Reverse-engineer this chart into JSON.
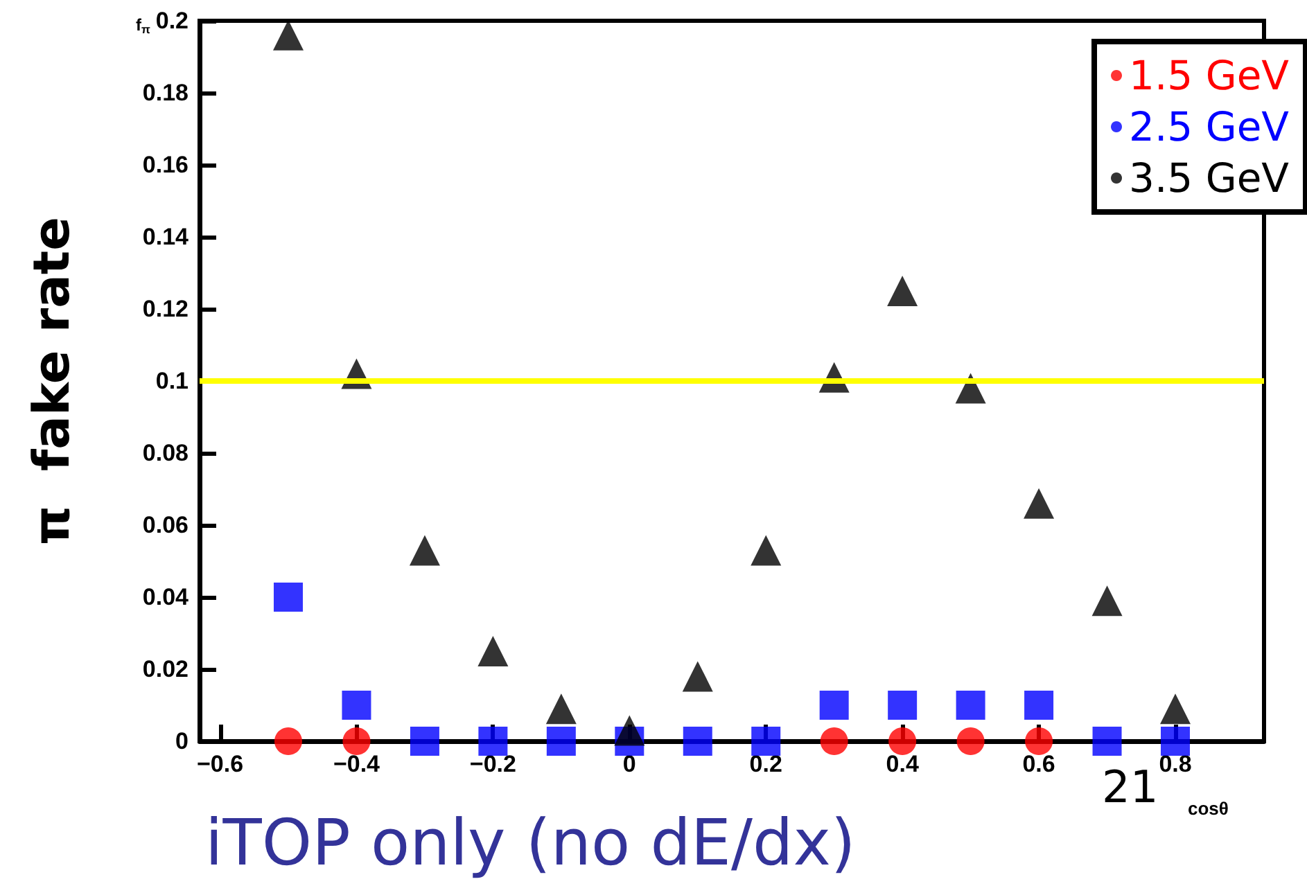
{
  "chart_data": {
    "type": "scatter",
    "xlabel": "cosθ",
    "ylabel": "π  fake rate",
    "annotations": [
      "f$_{π}$",
      "21",
      "iTOP only (no dE/dx)"
    ],
    "xlim": [
      -0.63,
      0.93
    ],
    "xticks": [
      -0.6,
      -0.4,
      -0.2,
      0,
      0.2,
      0.4,
      0.6,
      0.8
    ],
    "ylim": [
      0,
      0.2
    ],
    "yticks": [
      0,
      0.02,
      0.04,
      0.06,
      0.08,
      0.1,
      0.12,
      0.14,
      0.16,
      0.18,
      0.2
    ],
    "grid": false,
    "legend": "top right",
    "ref_lines": [
      {
        "axis": "y",
        "value": 0.1,
        "color": "#ffff00"
      }
    ],
    "series": [
      {
        "name": "1.5 GeV",
        "color": "#ff0000",
        "marker": "circle",
        "x": [
          -0.5,
          -0.4,
          0.3,
          0.4,
          0.5,
          0.6
        ],
        "values": [
          0,
          0,
          0,
          0,
          0,
          0
        ]
      },
      {
        "name": "2.5 GeV",
        "color": "#0000ff",
        "marker": "square",
        "x": [
          -0.5,
          -0.4,
          -0.3,
          -0.2,
          -0.1,
          0,
          0.1,
          0.2,
          0.3,
          0.4,
          0.5,
          0.6,
          0.7,
          0.8
        ],
        "values": [
          0.04,
          0.01,
          0,
          0,
          0,
          0,
          0,
          0,
          0.01,
          0.01,
          0.01,
          0.01,
          0,
          0
        ]
      },
      {
        "name": "3.5 GeV",
        "color": "#000000",
        "marker": "triangle",
        "x": [
          -0.5,
          -0.4,
          -0.3,
          -0.2,
          -0.1,
          0,
          0.1,
          0.2,
          0.3,
          0.4,
          0.5,
          0.6,
          0.7,
          0.8
        ],
        "values": [
          0.196,
          0.102,
          0.053,
          0.025,
          0.009,
          0.003,
          0.018,
          0.053,
          0.101,
          0.125,
          0.098,
          0.066,
          0.039,
          0.009
        ]
      }
    ]
  }
}
